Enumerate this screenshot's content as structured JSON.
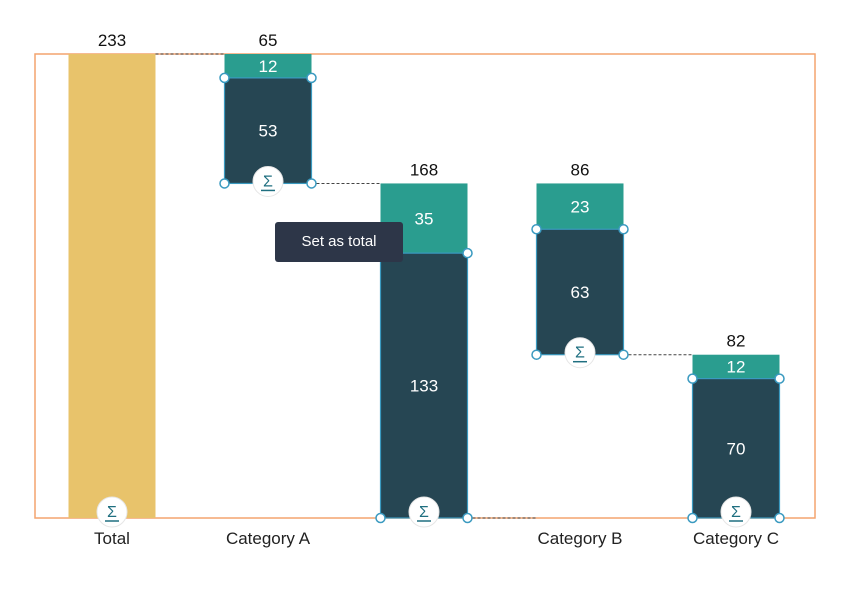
{
  "chart_data": {
    "type": "waterfall",
    "categories": [
      "Total",
      "Category A",
      "",
      "Category B",
      "Category C"
    ],
    "bars": [
      {
        "category": "Total",
        "total": 233,
        "base": 0,
        "segments": [
          {
            "value": 233,
            "color": "#e8c36b"
          }
        ],
        "label": "233",
        "is_total": true
      },
      {
        "category": "Category A",
        "total": 65,
        "base": 168,
        "segments": [
          {
            "value": 53,
            "color": "#264653"
          },
          {
            "value": 12,
            "color": "#2a9d8f"
          }
        ],
        "label": "65"
      },
      {
        "category": "",
        "total": 168,
        "base": 0,
        "segments": [
          {
            "value": 133,
            "color": "#264653"
          },
          {
            "value": 35,
            "color": "#2a9d8f"
          }
        ],
        "label": "168"
      },
      {
        "category": "Category B",
        "total": 86,
        "base": 82,
        "segments": [
          {
            "value": 63,
            "color": "#264653"
          },
          {
            "value": 23,
            "color": "#2a9d8f"
          }
        ],
        "label": "86"
      },
      {
        "category": "Category C",
        "total": 82,
        "base": 0,
        "segments": [
          {
            "value": 70,
            "color": "#264653"
          },
          {
            "value": 12,
            "color": "#2a9d8f"
          }
        ],
        "label": "82"
      }
    ],
    "ylim": [
      0,
      233
    ],
    "grid": false
  },
  "tooltip": "Set as total",
  "sigma_icon": "Σ",
  "colors": {
    "frame": "#f4a46f",
    "handle": "#3a9ac0"
  }
}
